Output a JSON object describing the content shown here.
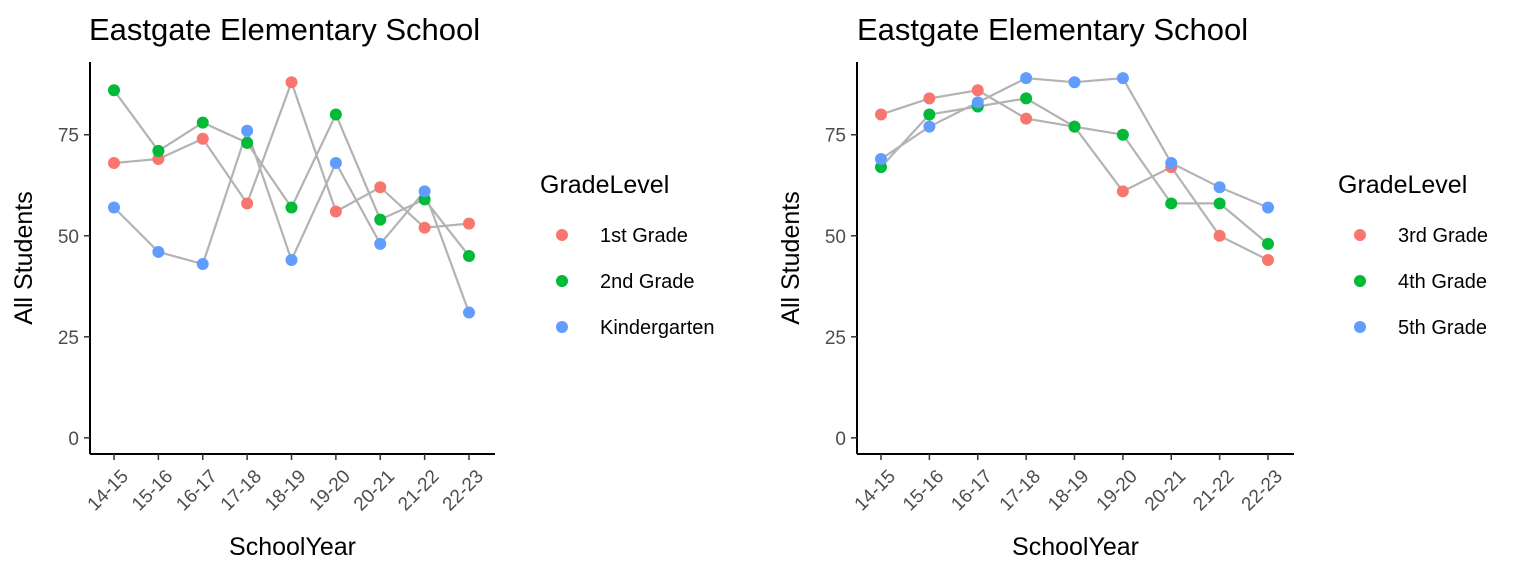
{
  "chart_data": [
    {
      "type": "line",
      "title": "Eastgate Elementary School",
      "xlabel": "SchoolYear",
      "ylabel": "All Students",
      "categories": [
        "14-15",
        "15-16",
        "16-17",
        "17-18",
        "18-19",
        "19-20",
        "20-21",
        "21-22",
        "22-23"
      ],
      "yticks": [
        0,
        25,
        50,
        75
      ],
      "ylim": [
        -4,
        93
      ],
      "legend_title": "GradeLevel",
      "legend_position": "right",
      "grid": false,
      "series": [
        {
          "name": "1st Grade",
          "color": "#F8766D",
          "values": [
            68,
            69,
            74,
            58,
            88,
            56,
            62,
            52,
            53
          ]
        },
        {
          "name": "2nd Grade",
          "color": "#00BA38",
          "values": [
            86,
            71,
            78,
            73,
            57,
            80,
            54,
            59,
            45
          ]
        },
        {
          "name": "Kindergarten",
          "color": "#619CFF",
          "values": [
            57,
            46,
            43,
            76,
            44,
            68,
            48,
            61,
            31
          ]
        }
      ]
    },
    {
      "type": "line",
      "title": "Eastgate Elementary School",
      "xlabel": "SchoolYear",
      "ylabel": "All Students",
      "categories": [
        "14-15",
        "15-16",
        "16-17",
        "17-18",
        "18-19",
        "19-20",
        "20-21",
        "21-22",
        "22-23"
      ],
      "yticks": [
        0,
        25,
        50,
        75
      ],
      "ylim": [
        -4,
        93
      ],
      "legend_title": "GradeLevel",
      "legend_position": "right",
      "grid": false,
      "series": [
        {
          "name": "3rd Grade",
          "color": "#F8766D",
          "values": [
            80,
            84,
            86,
            79,
            77,
            61,
            67,
            50,
            44
          ]
        },
        {
          "name": "4th Grade",
          "color": "#00BA38",
          "values": [
            67,
            80,
            82,
            84,
            77,
            75,
            58,
            58,
            48
          ]
        },
        {
          "name": "5th Grade",
          "color": "#619CFF",
          "values": [
            69,
            77,
            83,
            89,
            88,
            89,
            68,
            62,
            57
          ]
        }
      ]
    }
  ]
}
